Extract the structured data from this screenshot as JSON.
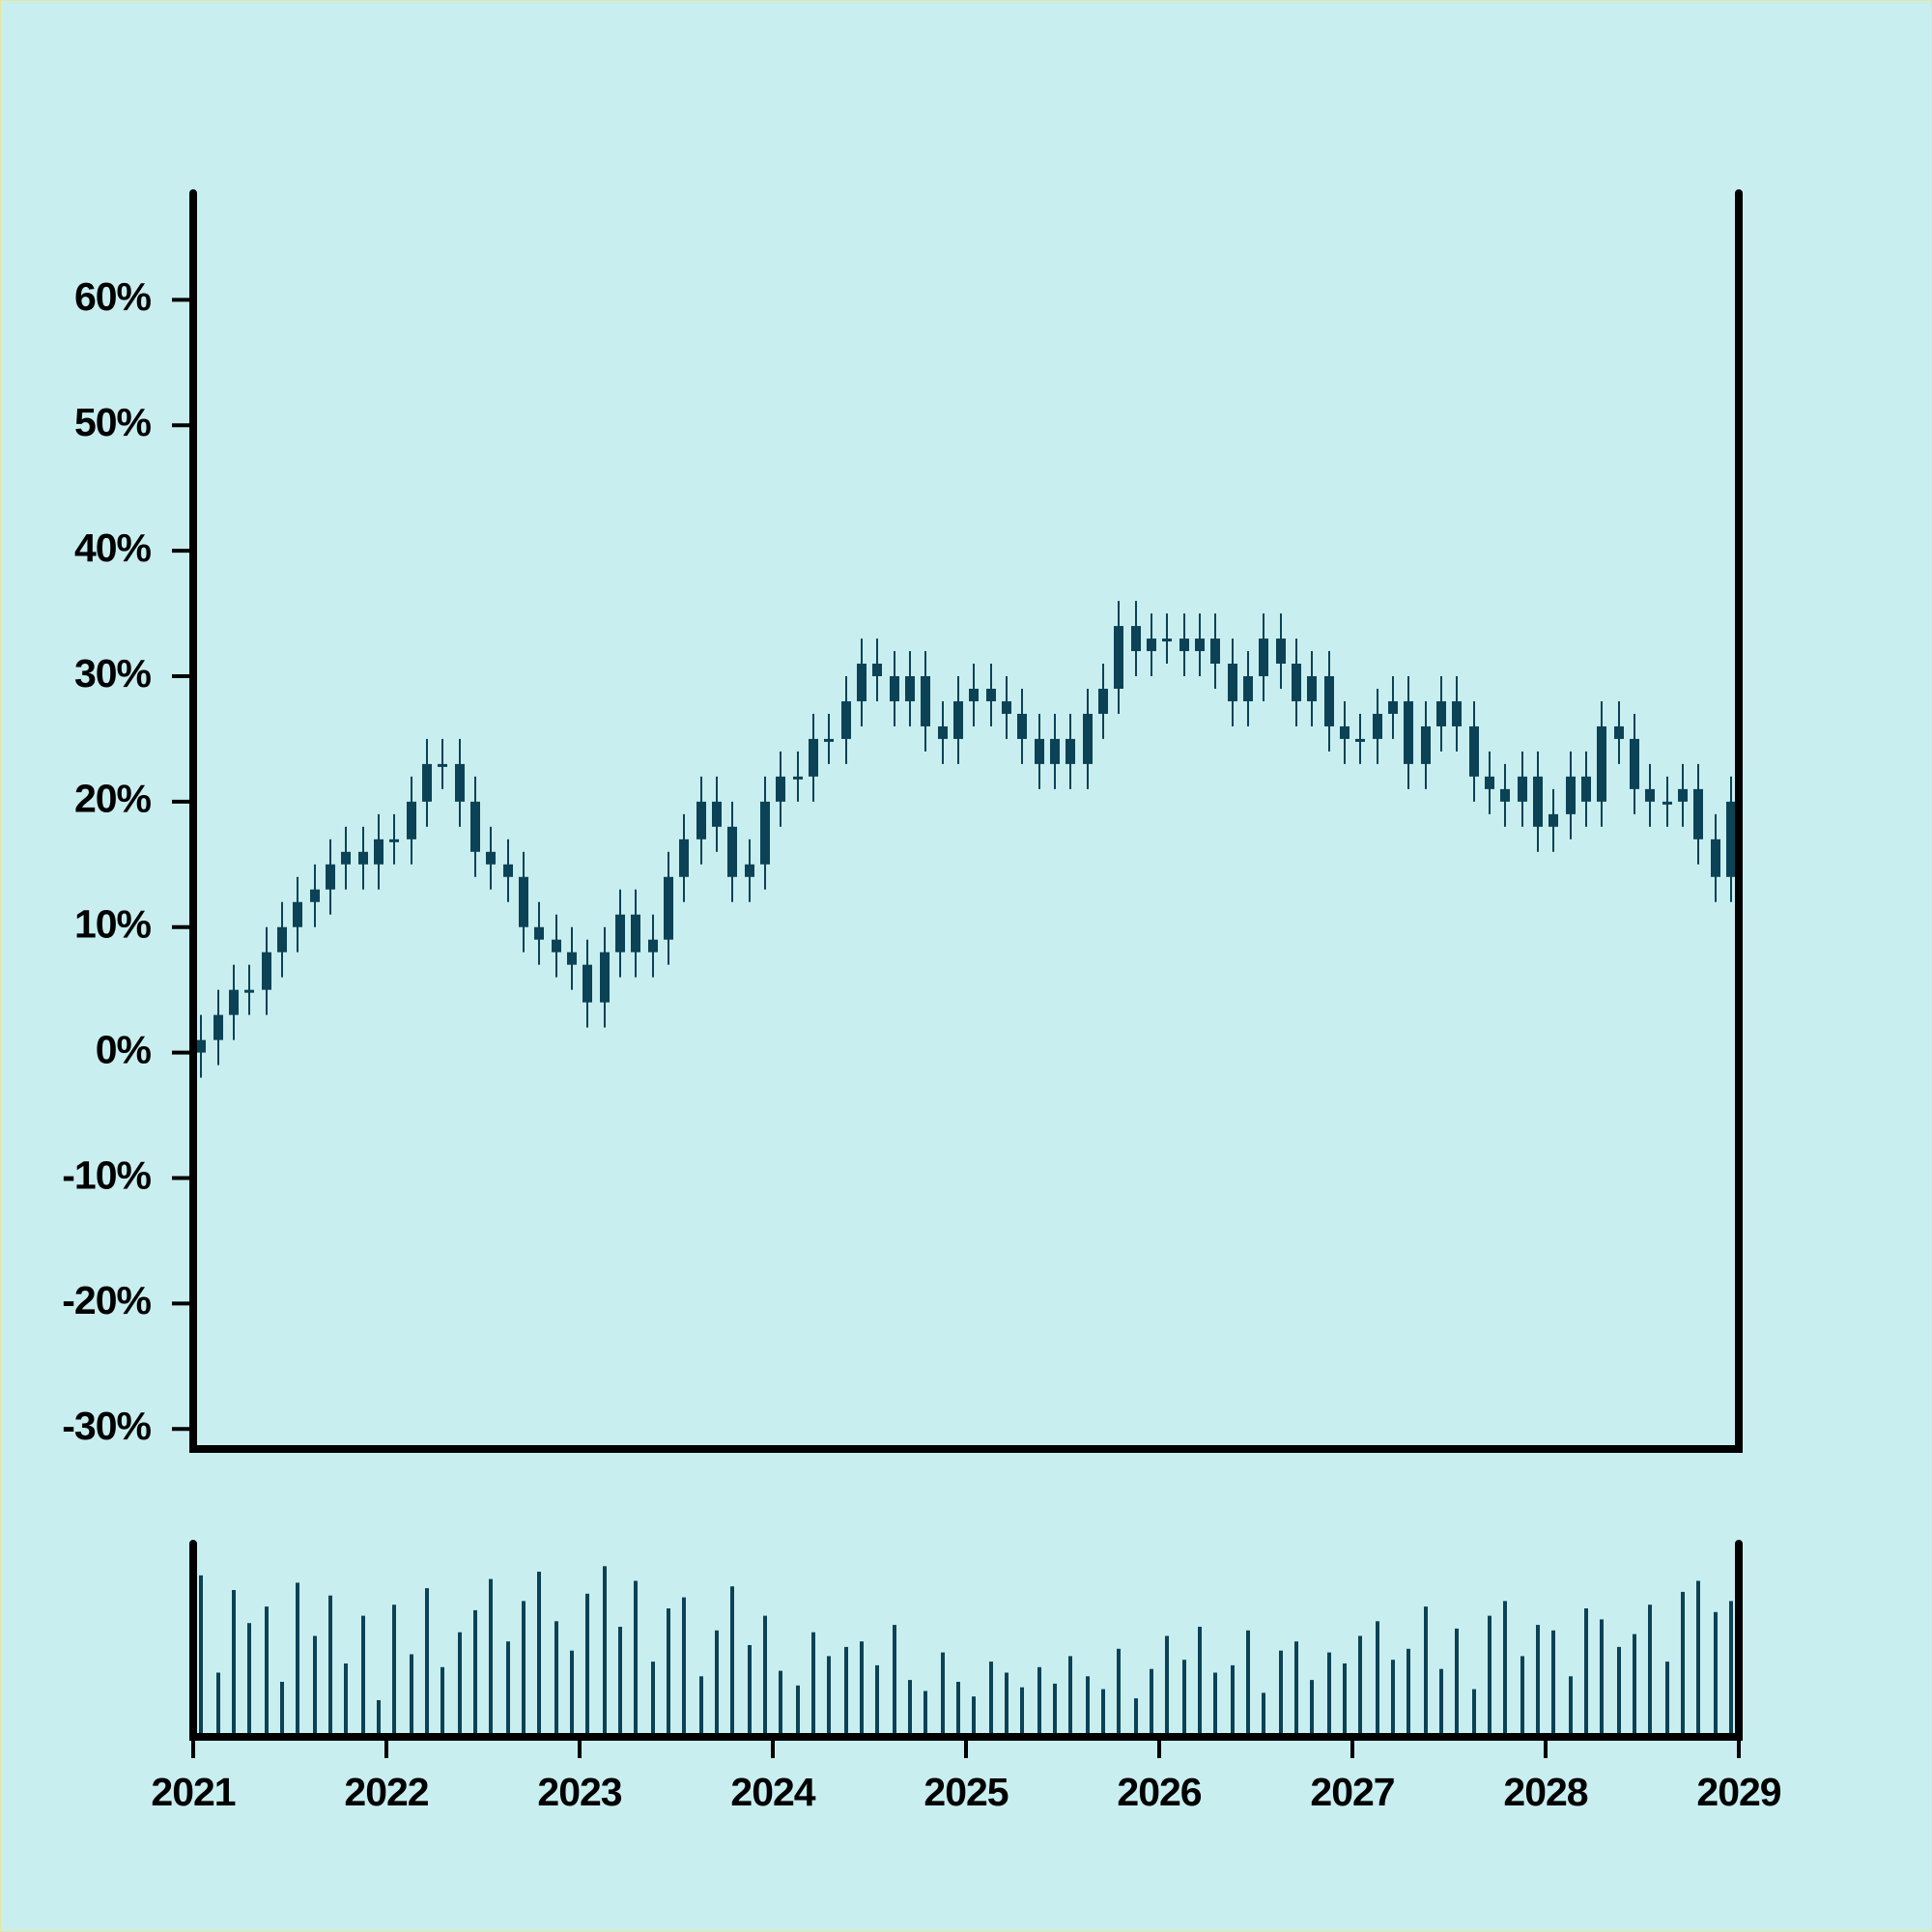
{
  "chart_data": {
    "type": "candlestick",
    "color": "#0b4256",
    "xlim": [
      2021,
      2029
    ],
    "xticks": [
      2021,
      2022,
      2023,
      2024,
      2025,
      2026,
      2027,
      2028,
      2029
    ],
    "ylim": [
      -31.6,
      68.5
    ],
    "yticks": [
      {
        "value": -30,
        "label": "-30%"
      },
      {
        "value": -20,
        "label": "-20%"
      },
      {
        "value": -10,
        "label": "-10%"
      },
      {
        "value": 0,
        "label": "0%"
      },
      {
        "value": 10,
        "label": "10%"
      },
      {
        "value": 20,
        "label": "20%"
      },
      {
        "value": 30,
        "label": "30%"
      },
      {
        "value": 40,
        "label": "40%"
      },
      {
        "value": 50,
        "label": "50%"
      },
      {
        "value": 60,
        "label": "60%"
      }
    ],
    "volume_ylim": [
      0,
      100
    ],
    "x": [
      2021.04,
      2021.13,
      2021.21,
      2021.29,
      2021.38,
      2021.46,
      2021.54,
      2021.63,
      2021.71,
      2021.79,
      2021.88,
      2021.96,
      2022.04,
      2022.13,
      2022.21,
      2022.29,
      2022.38,
      2022.46,
      2022.54,
      2022.63,
      2022.71,
      2022.79,
      2022.88,
      2022.96,
      2023.04,
      2023.13,
      2023.21,
      2023.29,
      2023.38,
      2023.46,
      2023.54,
      2023.63,
      2023.71,
      2023.79,
      2023.88,
      2023.96,
      2024.04,
      2024.13,
      2024.21,
      2024.29,
      2024.38,
      2024.46,
      2024.54,
      2024.63,
      2024.71,
      2024.79,
      2024.88,
      2024.96,
      2025.04,
      2025.13,
      2025.21,
      2025.29,
      2025.38,
      2025.46,
      2025.54,
      2025.63,
      2025.71,
      2025.79,
      2025.88,
      2025.96,
      2026.04,
      2026.13,
      2026.21,
      2026.29,
      2026.38,
      2026.46,
      2026.54,
      2026.63,
      2026.71,
      2026.79,
      2026.88,
      2026.96,
      2027.04,
      2027.13,
      2027.21,
      2027.29,
      2027.38,
      2027.46,
      2027.54,
      2027.63,
      2027.71,
      2027.79,
      2027.88,
      2027.96,
      2028.04,
      2028.13,
      2028.21,
      2028.29,
      2028.38,
      2028.46,
      2028.54,
      2028.63,
      2028.71,
      2028.79,
      2028.88,
      2028.96
    ],
    "open": [
      0,
      1,
      3,
      5,
      5,
      8,
      10,
      12,
      13,
      15,
      16,
      15,
      17,
      17,
      20,
      23,
      23,
      20,
      16,
      15,
      14,
      10,
      9,
      8,
      7,
      4,
      8,
      11,
      8,
      9,
      14,
      17,
      20,
      18,
      14,
      15,
      20,
      22,
      22,
      25,
      25,
      28,
      31,
      30,
      28,
      30,
      26,
      25,
      28,
      29,
      28,
      27,
      25,
      23,
      25,
      23,
      27,
      29,
      34,
      32,
      33,
      33,
      32,
      33,
      31,
      28,
      30,
      33,
      31,
      28,
      30,
      26,
      25,
      25,
      27,
      28,
      23,
      26,
      28,
      26,
      22,
      21,
      20,
      22,
      18,
      19,
      22,
      20,
      26,
      25,
      21,
      20,
      20,
      21,
      17,
      14
    ],
    "high": [
      3,
      5,
      7,
      7,
      10,
      12,
      14,
      15,
      17,
      18,
      18,
      19,
      19,
      22,
      25,
      25,
      25,
      22,
      18,
      17,
      16,
      12,
      11,
      10,
      9,
      10,
      13,
      13,
      11,
      16,
      19,
      22,
      22,
      20,
      17,
      22,
      24,
      24,
      27,
      27,
      30,
      33,
      33,
      32,
      32,
      32,
      28,
      30,
      31,
      31,
      30,
      29,
      27,
      27,
      27,
      29,
      31,
      36,
      36,
      35,
      35,
      35,
      35,
      35,
      33,
      32,
      35,
      35,
      33,
      32,
      32,
      28,
      27,
      29,
      30,
      30,
      28,
      30,
      30,
      28,
      24,
      23,
      24,
      24,
      21,
      24,
      24,
      28,
      28,
      27,
      23,
      22,
      23,
      23,
      19,
      22
    ],
    "low": [
      -2,
      -1,
      1,
      3,
      3,
      6,
      8,
      10,
      11,
      13,
      13,
      13,
      15,
      15,
      18,
      21,
      18,
      14,
      13,
      12,
      8,
      7,
      6,
      5,
      2,
      2,
      6,
      6,
      6,
      7,
      12,
      15,
      16,
      12,
      12,
      13,
      18,
      20,
      20,
      23,
      23,
      26,
      28,
      26,
      26,
      24,
      23,
      23,
      26,
      26,
      25,
      23,
      21,
      21,
      21,
      21,
      25,
      27,
      30,
      30,
      31,
      30,
      30,
      29,
      26,
      26,
      28,
      29,
      26,
      26,
      24,
      23,
      23,
      23,
      25,
      21,
      21,
      24,
      24,
      20,
      19,
      18,
      18,
      16,
      16,
      17,
      18,
      18,
      23,
      19,
      18,
      18,
      18,
      15,
      12,
      12
    ],
    "close": [
      1,
      3,
      5,
      5,
      8,
      10,
      12,
      13,
      15,
      16,
      15,
      17,
      17,
      20,
      23,
      23,
      20,
      16,
      15,
      14,
      10,
      9,
      8,
      7,
      4,
      8,
      11,
      8,
      9,
      14,
      17,
      20,
      18,
      14,
      15,
      20,
      22,
      22,
      25,
      25,
      28,
      31,
      30,
      28,
      30,
      26,
      25,
      28,
      29,
      28,
      27,
      25,
      23,
      25,
      23,
      27,
      29,
      34,
      32,
      33,
      33,
      32,
      33,
      31,
      28,
      30,
      33,
      31,
      28,
      30,
      26,
      25,
      25,
      27,
      28,
      23,
      26,
      28,
      26,
      22,
      21,
      20,
      22,
      18,
      19,
      22,
      20,
      26,
      25,
      21,
      20,
      20,
      21,
      17,
      14,
      20
    ],
    "volume": [
      88,
      35,
      80,
      62,
      71,
      30,
      84,
      55,
      77,
      40,
      66,
      20,
      72,
      45,
      81,
      38,
      57,
      69,
      86,
      52,
      74,
      90,
      63,
      47,
      78,
      93,
      60,
      85,
      41,
      70,
      76,
      33,
      58,
      82,
      50,
      66,
      36,
      28,
      57,
      44,
      49,
      52,
      39,
      61,
      31,
      25,
      46,
      30,
      22,
      41,
      35,
      27,
      38,
      29,
      44,
      33,
      26,
      48,
      21,
      37,
      55,
      42,
      60,
      35,
      39,
      58,
      24,
      47,
      52,
      31,
      46,
      40,
      55,
      63,
      42,
      48,
      71,
      37,
      59,
      26,
      66,
      74,
      44,
      61,
      58,
      33,
      70,
      64,
      49,
      56,
      72,
      41,
      79,
      85,
      68,
      74
    ]
  }
}
